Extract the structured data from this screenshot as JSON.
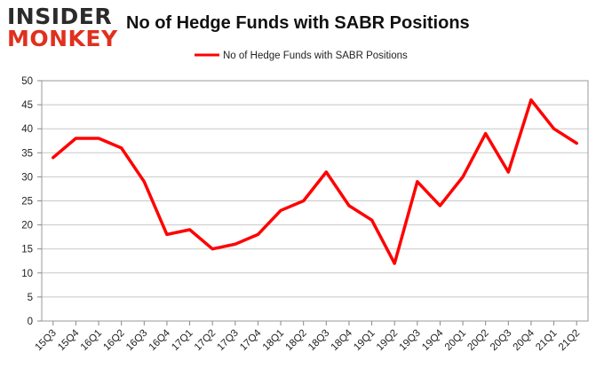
{
  "logo": {
    "line1": "INSIDER",
    "line2": "MONKEY"
  },
  "colors": {
    "series": "#ff0000",
    "grid": "#c8c8c8",
    "plot_border": "#999999",
    "logo_red": "#e0301e"
  },
  "chart_data": {
    "type": "line",
    "title": "No of Hedge Funds with SABR Positions",
    "xlabel": "",
    "ylabel": "",
    "ylim": [
      0,
      50
    ],
    "yticks": [
      0,
      5,
      10,
      15,
      20,
      25,
      30,
      35,
      40,
      45,
      50
    ],
    "grid": true,
    "legend_position": "top-center",
    "categories": [
      "15Q3",
      "15Q4",
      "16Q1",
      "16Q2",
      "16Q3",
      "16Q4",
      "17Q1",
      "17Q2",
      "17Q3",
      "17Q4",
      "18Q1",
      "18Q2",
      "18Q3",
      "18Q4",
      "19Q1",
      "19Q2",
      "19Q3",
      "19Q4",
      "20Q1",
      "20Q2",
      "20Q3",
      "20Q4",
      "21Q1",
      "21Q2"
    ],
    "series": [
      {
        "name": "No of Hedge Funds with SABR Positions",
        "color": "#ff0000",
        "values": [
          34,
          38,
          38,
          36,
          29,
          18,
          19,
          15,
          16,
          18,
          23,
          25,
          31,
          24,
          21,
          12,
          29,
          24,
          30,
          39,
          31,
          46,
          40,
          37
        ]
      }
    ]
  }
}
